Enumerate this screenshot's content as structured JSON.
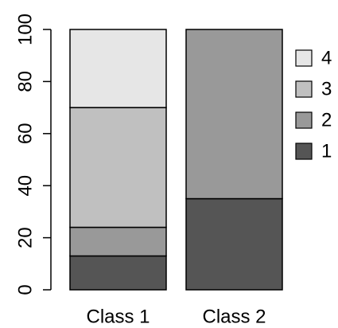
{
  "chart_data": {
    "type": "bar",
    "stacked": true,
    "categories": [
      "Class 1",
      "Class 2"
    ],
    "series": [
      {
        "name": "1",
        "values": [
          13,
          35
        ],
        "color": "#555555"
      },
      {
        "name": "2",
        "values": [
          11,
          65
        ],
        "color": "#999999"
      },
      {
        "name": "3",
        "values": [
          46,
          0
        ],
        "color": "#c0c0c0"
      },
      {
        "name": "4",
        "values": [
          30,
          0
        ],
        "color": "#e6e6e6"
      }
    ],
    "title": "",
    "xlabel": "",
    "ylabel": "",
    "ylim": [
      0,
      100
    ],
    "yticks": [
      0,
      20,
      40,
      60,
      80,
      100
    ],
    "grid": false,
    "legend": {
      "placement": "right",
      "order": [
        "4",
        "3",
        "2",
        "1"
      ]
    }
  }
}
